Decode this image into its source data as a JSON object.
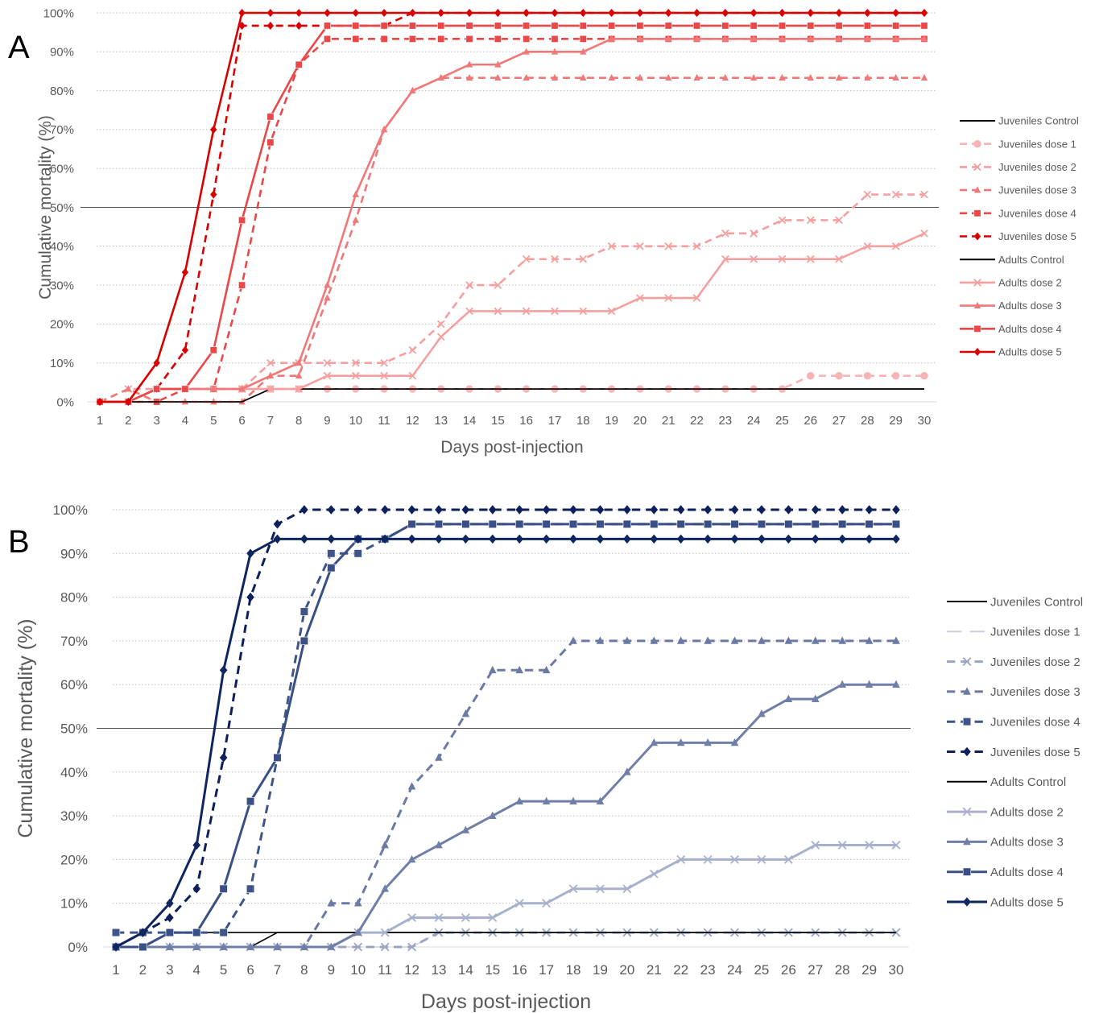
{
  "chart_data": [
    {
      "panel_label": "A",
      "type": "line",
      "xlabel": "Days post-injection",
      "ylabel": "Cumulative mortality (%)",
      "xlim": [
        1,
        30
      ],
      "ylim": [
        0,
        100
      ],
      "y_ticks": [
        "0%",
        "10%",
        "20%",
        "30%",
        "40%",
        "50%",
        "60%",
        "70%",
        "80%",
        "90%",
        "100%"
      ],
      "x_ticks": [
        "1",
        "2",
        "3",
        "4",
        "5",
        "6",
        "7",
        "8",
        "9",
        "10",
        "11",
        "12",
        "13",
        "14",
        "15",
        "16",
        "17",
        "18",
        "19",
        "20",
        "21",
        "22",
        "23",
        "24",
        "25",
        "26",
        "27",
        "28",
        "29",
        "30"
      ],
      "grid": "horizontal dotted",
      "reference_line_y": 50,
      "legend_position": "right",
      "series": [
        {
          "name": "Juveniles Control",
          "color": "#000000",
          "dash": "solid",
          "marker": "none",
          "values": [
            0,
            0,
            0,
            0,
            0,
            0,
            3.3,
            3.3,
            3.3,
            3.3,
            3.3,
            3.3,
            3.3,
            3.3,
            3.3,
            3.3,
            3.3,
            3.3,
            3.3,
            3.3,
            3.3,
            3.3,
            3.3,
            3.3,
            3.3,
            3.3,
            3.3,
            3.3,
            3.3,
            3.3
          ]
        },
        {
          "name": "Juveniles dose 1",
          "color": "#f8b4b4",
          "dash": "dashed",
          "marker": "circle",
          "values": [
            0,
            0,
            3.3,
            3.3,
            3.3,
            3.3,
            3.3,
            3.3,
            3.3,
            3.3,
            3.3,
            3.3,
            3.3,
            3.3,
            3.3,
            3.3,
            3.3,
            3.3,
            3.3,
            3.3,
            3.3,
            3.3,
            3.3,
            3.3,
            3.3,
            6.7,
            6.7,
            6.7,
            6.7,
            6.7
          ]
        },
        {
          "name": "Juveniles dose 2",
          "color": "#f59f9f",
          "dash": "dashed",
          "marker": "x",
          "values": [
            0,
            3.3,
            3.3,
            3.3,
            3.3,
            3.3,
            10,
            10,
            10,
            10,
            10,
            13.3,
            20,
            30,
            30,
            36.7,
            36.7,
            36.7,
            40,
            40,
            40,
            40,
            43.3,
            43.3,
            46.7,
            46.7,
            46.7,
            53.3,
            53.3,
            53.3
          ]
        },
        {
          "name": "Juveniles dose 3",
          "color": "#f07878",
          "dash": "dashed",
          "marker": "triangle",
          "values": [
            0,
            3.3,
            0,
            0,
            0,
            0,
            6.7,
            6.7,
            26.7,
            46.7,
            70,
            80,
            83.3,
            83.3,
            83.3,
            83.3,
            83.3,
            83.3,
            83.3,
            83.3,
            83.3,
            83.3,
            83.3,
            83.3,
            83.3,
            83.3,
            83.3,
            83.3,
            83.3,
            83.3
          ]
        },
        {
          "name": "Juveniles dose 4",
          "color": "#ea4848",
          "dash": "dashed",
          "marker": "square",
          "values": [
            0,
            0,
            0,
            3.3,
            3.3,
            30,
            66.7,
            86.7,
            93.3,
            93.3,
            93.3,
            93.3,
            93.3,
            93.3,
            93.3,
            93.3,
            93.3,
            93.3,
            93.3,
            93.3,
            93.3,
            93.3,
            93.3,
            93.3,
            93.3,
            93.3,
            93.3,
            93.3,
            93.3,
            93.3
          ]
        },
        {
          "name": "Juveniles dose 5",
          "color": "#d90000",
          "dash": "dashed",
          "marker": "diamond",
          "values": [
            0,
            0,
            3.3,
            13.3,
            53.3,
            96.7,
            96.7,
            96.7,
            96.7,
            96.7,
            96.7,
            100,
            100,
            100,
            100,
            100,
            100,
            100,
            100,
            100,
            100,
            100,
            100,
            100,
            100,
            100,
            100,
            100,
            100,
            100
          ]
        },
        {
          "name": "Adults Control",
          "color": "#000000",
          "dash": "solid",
          "marker": "none",
          "values": [
            0,
            0,
            0,
            0,
            0,
            0,
            3.3,
            3.3,
            3.3,
            3.3,
            3.3,
            3.3,
            3.3,
            3.3,
            3.3,
            3.3,
            3.3,
            3.3,
            3.3,
            3.3,
            3.3,
            3.3,
            3.3,
            3.3,
            3.3,
            3.3,
            3.3,
            3.3,
            3.3,
            3.3
          ]
        },
        {
          "name": "Adults dose 2",
          "color": "#f59f9f",
          "dash": "solid",
          "marker": "x",
          "values": [
            0,
            0,
            3.3,
            3.3,
            3.3,
            3.3,
            3.3,
            3.3,
            6.7,
            6.7,
            6.7,
            6.7,
            16.7,
            23.3,
            23.3,
            23.3,
            23.3,
            23.3,
            23.3,
            26.7,
            26.7,
            26.7,
            36.7,
            36.7,
            36.7,
            36.7,
            36.7,
            40,
            40,
            43.3
          ]
        },
        {
          "name": "Adults dose 3",
          "color": "#f07878",
          "dash": "solid",
          "marker": "triangle",
          "values": [
            0,
            0,
            3.3,
            3.3,
            3.3,
            3.3,
            6.7,
            10,
            30,
            53.3,
            70,
            80,
            83.3,
            86.7,
            86.7,
            90,
            90,
            90,
            93.3,
            93.3,
            93.3,
            93.3,
            93.3,
            93.3,
            93.3,
            93.3,
            93.3,
            93.3,
            93.3,
            93.3
          ]
        },
        {
          "name": "Adults dose 4",
          "color": "#ea4848",
          "dash": "solid",
          "marker": "square",
          "values": [
            0,
            0,
            3.3,
            3.3,
            13.3,
            46.7,
            73.3,
            86.7,
            96.7,
            96.7,
            96.7,
            96.7,
            96.7,
            96.7,
            96.7,
            96.7,
            96.7,
            96.7,
            96.7,
            96.7,
            96.7,
            96.7,
            96.7,
            96.7,
            96.7,
            96.7,
            96.7,
            96.7,
            96.7,
            96.7
          ]
        },
        {
          "name": "Adults dose 5",
          "color": "#d90000",
          "dash": "solid",
          "marker": "diamond",
          "values": [
            0,
            0,
            10,
            33.3,
            70,
            100,
            100,
            100,
            100,
            100,
            100,
            100,
            100,
            100,
            100,
            100,
            100,
            100,
            100,
            100,
            100,
            100,
            100,
            100,
            100,
            100,
            100,
            100,
            100,
            100
          ]
        }
      ]
    },
    {
      "panel_label": "B",
      "type": "line",
      "xlabel": "Days post-injection",
      "ylabel": "Cumulative mortality (%)",
      "xlim": [
        1,
        30
      ],
      "ylim": [
        0,
        100
      ],
      "y_ticks": [
        "0%",
        "10%",
        "20%",
        "30%",
        "40%",
        "50%",
        "60%",
        "70%",
        "80%",
        "90%",
        "100%"
      ],
      "x_ticks": [
        "1",
        "2",
        "3",
        "4",
        "5",
        "6",
        "7",
        "8",
        "9",
        "10",
        "11",
        "12",
        "13",
        "14",
        "15",
        "16",
        "17",
        "18",
        "19",
        "20",
        "21",
        "22",
        "23",
        "24",
        "25",
        "26",
        "27",
        "28",
        "29",
        "30"
      ],
      "grid": "horizontal dotted",
      "reference_line_y": 50,
      "legend_position": "right",
      "series": [
        {
          "name": "Juveniles Control",
          "color": "#000000",
          "dash": "solid",
          "marker": "none",
          "values": [
            0,
            0,
            3.3,
            3.3,
            3.3,
            3.3,
            3.3,
            3.3,
            3.3,
            3.3,
            3.3,
            3.3,
            3.3,
            3.3,
            3.3,
            3.3,
            3.3,
            3.3,
            3.3,
            3.3,
            3.3,
            3.3,
            3.3,
            3.3,
            3.3,
            3.3,
            3.3,
            3.3,
            3.3,
            3.3
          ]
        },
        {
          "name": "Juveniles dose 1",
          "color": "#c8cfe0",
          "dash": "longdash",
          "marker": "none",
          "values": [
            0,
            0,
            0,
            0,
            0,
            0,
            0,
            0,
            0,
            0,
            0,
            0,
            3.3,
            3.3,
            3.3,
            3.3,
            3.3,
            3.3,
            3.3,
            3.3,
            3.3,
            3.3,
            3.3,
            3.3,
            3.3,
            3.3,
            3.3,
            3.3,
            3.3,
            3.3
          ]
        },
        {
          "name": "Juveniles dose 2",
          "color": "#9aa5c2",
          "dash": "dashed",
          "marker": "x",
          "values": [
            0,
            0,
            0,
            0,
            0,
            0,
            0,
            0,
            0,
            0,
            0,
            0,
            3.3,
            3.3,
            3.3,
            3.3,
            3.3,
            3.3,
            3.3,
            3.3,
            3.3,
            3.3,
            3.3,
            3.3,
            3.3,
            3.3,
            3.3,
            3.3,
            3.3,
            3.3
          ]
        },
        {
          "name": "Juveniles dose 3",
          "color": "#6a7aa3",
          "dash": "dashed",
          "marker": "triangle",
          "values": [
            0,
            0,
            0,
            0,
            0,
            0,
            0,
            0,
            10,
            10,
            23.3,
            36.7,
            43.3,
            53.3,
            63.3,
            63.3,
            63.3,
            70,
            70,
            70,
            70,
            70,
            70,
            70,
            70,
            70,
            70,
            70,
            70,
            70
          ]
        },
        {
          "name": "Juveniles dose 4",
          "color": "#3f5488",
          "dash": "dashed",
          "marker": "square",
          "values": [
            3.3,
            3.3,
            3.3,
            3.3,
            3.3,
            13.3,
            43.3,
            76.7,
            90,
            90,
            93.3,
            96.7,
            96.7,
            96.7,
            96.7,
            96.7,
            96.7,
            96.7,
            96.7,
            96.7,
            96.7,
            96.7,
            96.7,
            96.7,
            96.7,
            96.7,
            96.7,
            96.7,
            96.7,
            96.7
          ]
        },
        {
          "name": "Juveniles dose 5",
          "color": "#0d1f5c",
          "dash": "dashed",
          "marker": "diamond",
          "values": [
            0,
            3.3,
            6.7,
            13.3,
            43.3,
            80,
            96.7,
            100,
            100,
            100,
            100,
            100,
            100,
            100,
            100,
            100,
            100,
            100,
            100,
            100,
            100,
            100,
            100,
            100,
            100,
            100,
            100,
            100,
            100,
            100
          ]
        },
        {
          "name": "Adults Control",
          "color": "#000000",
          "dash": "solid",
          "marker": "none",
          "values": [
            0,
            0,
            0,
            0,
            0,
            0,
            3.3,
            3.3,
            3.3,
            3.3,
            3.3,
            3.3,
            3.3,
            3.3,
            3.3,
            3.3,
            3.3,
            3.3,
            3.3,
            3.3,
            3.3,
            3.3,
            3.3,
            3.3,
            3.3,
            3.3,
            3.3,
            3.3,
            3.3,
            3.3
          ]
        },
        {
          "name": "Adults dose 2",
          "color": "#a7b1cc",
          "dash": "solid",
          "marker": "x",
          "values": [
            0,
            0,
            0,
            0,
            0,
            0,
            0,
            0,
            0,
            3.3,
            3.3,
            6.7,
            6.7,
            6.7,
            6.7,
            10,
            10,
            13.3,
            13.3,
            13.3,
            16.7,
            20,
            20,
            20,
            20,
            20,
            23.3,
            23.3,
            23.3,
            23.3
          ]
        },
        {
          "name": "Adults dose 3",
          "color": "#6f7fa8",
          "dash": "solid",
          "marker": "triangle",
          "values": [
            0,
            0,
            0,
            0,
            0,
            0,
            0,
            0,
            0,
            3.3,
            13.3,
            20,
            23.3,
            26.7,
            30,
            33.3,
            33.3,
            33.3,
            33.3,
            40,
            46.7,
            46.7,
            46.7,
            46.7,
            53.3,
            56.7,
            56.7,
            60,
            60,
            60
          ]
        },
        {
          "name": "Adults dose 4",
          "color": "#3a4f86",
          "dash": "solid",
          "marker": "square",
          "values": [
            0,
            0,
            3.3,
            3.3,
            13.3,
            33.3,
            43.3,
            70,
            86.7,
            93.3,
            93.3,
            96.7,
            96.7,
            96.7,
            96.7,
            96.7,
            96.7,
            96.7,
            96.7,
            96.7,
            96.7,
            96.7,
            96.7,
            96.7,
            96.7,
            96.7,
            96.7,
            96.7,
            96.7,
            96.7
          ]
        },
        {
          "name": "Adults dose 5",
          "color": "#0f2560",
          "dash": "solid",
          "marker": "diamond",
          "values": [
            0,
            3.3,
            10,
            23.3,
            63.3,
            90,
            93.3,
            93.3,
            93.3,
            93.3,
            93.3,
            93.3,
            93.3,
            93.3,
            93.3,
            93.3,
            93.3,
            93.3,
            93.3,
            93.3,
            93.3,
            93.3,
            93.3,
            93.3,
            93.3,
            93.3,
            93.3,
            93.3,
            93.3,
            93.3
          ]
        }
      ]
    }
  ]
}
